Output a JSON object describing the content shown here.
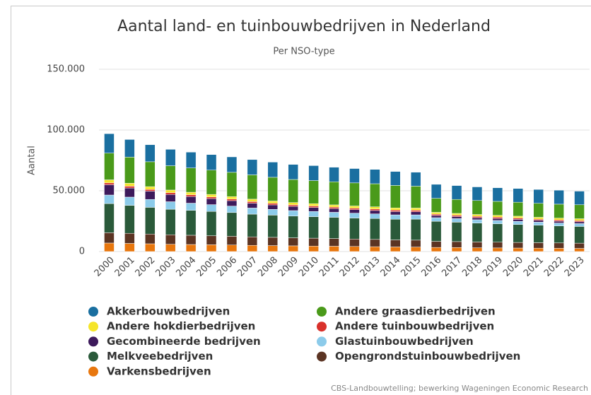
{
  "chart_data": {
    "type": "stacked_bar",
    "title": "Aantal land- en tuinbouwbedrijven in Nederland",
    "subtitle": "Per NSO-type",
    "y_label": "Aantal",
    "source": "CBS-Landbouwtelling; bewerking Wageningen Economic Research",
    "categories": [
      "2000",
      "2001",
      "2002",
      "2003",
      "2004",
      "2005",
      "2006",
      "2007",
      "2008",
      "2009",
      "2010",
      "2011",
      "2012",
      "2013",
      "2014",
      "2015",
      "2016",
      "2017",
      "2018",
      "2019",
      "2020",
      "2021",
      "2022",
      "2023"
    ],
    "ylim": [
      0,
      150000
    ],
    "yticks": [
      0,
      {
        "value": 50000,
        "label": "50.000"
      },
      {
        "value": 100000,
        "label": "100.000"
      },
      {
        "value": 150000,
        "label": "150.000"
      }
    ],
    "grid": true,
    "legend_order": [
      8,
      7,
      6,
      5,
      4,
      3,
      2,
      1,
      0
    ],
    "series": [
      {
        "name": "Varkensbedrijven",
        "color": "#e8770e",
        "values": [
          7000,
          6700,
          6400,
          6000,
          5800,
          5600,
          5400,
          5100,
          4900,
          4700,
          4500,
          4400,
          4200,
          4000,
          3800,
          3700,
          3400,
          3300,
          3100,
          3000,
          2900,
          2800,
          2700,
          2600
        ]
      },
      {
        "name": "Opengrondstuinbouwbedrijven",
        "color": "#5b3423",
        "values": [
          8500,
          8300,
          8000,
          7800,
          7600,
          7400,
          7200,
          7000,
          6800,
          6600,
          6500,
          6300,
          6100,
          6000,
          5800,
          5700,
          5000,
          4900,
          4800,
          4700,
          4600,
          4500,
          4400,
          4300
        ]
      },
      {
        "name": "Melkveebedrijven",
        "color": "#2a5a3a",
        "values": [
          24000,
          23000,
          22000,
          21000,
          20500,
          20000,
          19500,
          18700,
          18300,
          17900,
          17700,
          17500,
          17300,
          17200,
          17000,
          17300,
          16500,
          16000,
          15500,
          15200,
          14800,
          14400,
          14000,
          13800
        ]
      },
      {
        "name": "Glastuinbouwbedrijven",
        "color": "#8ccbea",
        "values": [
          7000,
          6800,
          6500,
          6200,
          5900,
          5600,
          5300,
          5000,
          4700,
          4500,
          4300,
          4100,
          4000,
          3800,
          3600,
          3500,
          3000,
          2900,
          2800,
          2700,
          2600,
          2500,
          2400,
          2300
        ]
      },
      {
        "name": "Gecombineerde bedrijven",
        "color": "#3d1a5b",
        "values": [
          8500,
          7500,
          6800,
          6000,
          5500,
          5000,
          4500,
          4000,
          3700,
          3500,
          3300,
          3100,
          2900,
          2800,
          2700,
          2600,
          1800,
          1700,
          1700,
          1600,
          1600,
          1500,
          1500,
          1500
        ]
      },
      {
        "name": "Andere tuinbouwbedrijven",
        "color": "#d9312b",
        "values": [
          1500,
          1500,
          1400,
          1400,
          1400,
          1300,
          1300,
          1300,
          1300,
          1200,
          1200,
          1200,
          1200,
          1200,
          1200,
          1200,
          1100,
          1100,
          1100,
          1100,
          1100,
          1000,
          1000,
          1000
        ]
      },
      {
        "name": "Andere hokdierbedrijven",
        "color": "#f5e52a",
        "values": [
          2500,
          2400,
          2300,
          2200,
          2100,
          2100,
          2000,
          2000,
          1900,
          1900,
          1900,
          1800,
          1800,
          1800,
          1800,
          1800,
          1500,
          1500,
          1500,
          1500,
          1500,
          1500,
          1500,
          1500
        ]
      },
      {
        "name": "Andere graasdierbedrijven",
        "color": "#4a9a1a",
        "values": [
          22000,
          21500,
          20500,
          20000,
          20000,
          20000,
          20000,
          20000,
          19500,
          19000,
          19000,
          19000,
          19000,
          19000,
          18500,
          18000,
          11500,
          11500,
          11500,
          11500,
          11500,
          11500,
          11500,
          11500
        ]
      },
      {
        "name": "Akkerbouwbedrijven",
        "color": "#1a6fa0",
        "values": [
          16000,
          14500,
          14000,
          13500,
          13000,
          12800,
          12700,
          12600,
          12500,
          12400,
          12300,
          12000,
          11800,
          11800,
          11500,
          11500,
          11500,
          11400,
          11200,
          11200,
          11300,
          11400,
          11500,
          11200
        ]
      }
    ]
  }
}
